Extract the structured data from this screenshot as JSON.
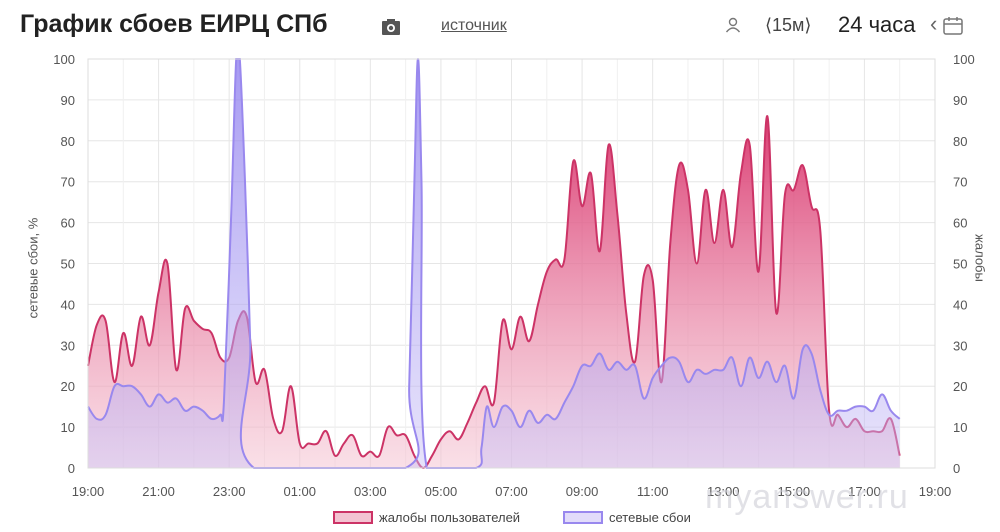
{
  "header": {
    "title": "График сбоев ЕИРЦ СПб",
    "source_link": "источник",
    "interval": "⟨15м⟩",
    "range": "24 часа",
    "range_prev": "‹"
  },
  "watermark": {
    "site": "myanswer.ru"
  },
  "colors": {
    "complaints": "#cc3366",
    "outages": "#9988ee",
    "grid": "#e6e6e6"
  },
  "chart_data": {
    "type": "area",
    "ylabel_left": "сетевые сбои, %",
    "ylabel_right": "жалобы",
    "ylim": [
      0,
      100
    ],
    "y_ticks": [
      0,
      10,
      20,
      30,
      40,
      50,
      60,
      70,
      80,
      90,
      100
    ],
    "x_ticks": [
      "19:00",
      "21:00",
      "23:00",
      "01:00",
      "03:00",
      "05:00",
      "07:00",
      "09:00",
      "11:00",
      "13:00",
      "15:00",
      "17:00",
      "19:00"
    ],
    "grid": true,
    "legend_position": "bottom-center",
    "series": [
      {
        "name": "жалобы пользователей",
        "color": "#cc3366",
        "points": [
          [
            0,
            25
          ],
          [
            0.25,
            35
          ],
          [
            0.5,
            36
          ],
          [
            0.75,
            21
          ],
          [
            1,
            33
          ],
          [
            1.25,
            25
          ],
          [
            1.5,
            37
          ],
          [
            1.75,
            30
          ],
          [
            2,
            43
          ],
          [
            2.25,
            50
          ],
          [
            2.5,
            24
          ],
          [
            2.75,
            39
          ],
          [
            3,
            36
          ],
          [
            3.25,
            34
          ],
          [
            3.5,
            33
          ],
          [
            3.75,
            27
          ],
          [
            4,
            27
          ],
          [
            4.25,
            36
          ],
          [
            4.5,
            37
          ],
          [
            4.75,
            21
          ],
          [
            5,
            24
          ],
          [
            5.25,
            12
          ],
          [
            5.5,
            9
          ],
          [
            5.75,
            20
          ],
          [
            6,
            6
          ],
          [
            6.25,
            6
          ],
          [
            6.5,
            6
          ],
          [
            6.75,
            9
          ],
          [
            7,
            3
          ],
          [
            7.25,
            6
          ],
          [
            7.5,
            8
          ],
          [
            7.75,
            3
          ],
          [
            8,
            4
          ],
          [
            8.25,
            3
          ],
          [
            8.5,
            10
          ],
          [
            8.75,
            8
          ],
          [
            9,
            8
          ],
          [
            9.25,
            3
          ],
          [
            9.5,
            0
          ],
          [
            9.75,
            3
          ],
          [
            10,
            7
          ],
          [
            10.25,
            9
          ],
          [
            10.5,
            7
          ],
          [
            10.75,
            11
          ],
          [
            11,
            16
          ],
          [
            11.25,
            20
          ],
          [
            11.5,
            16
          ],
          [
            11.75,
            36
          ],
          [
            12,
            29
          ],
          [
            12.25,
            37
          ],
          [
            12.5,
            31
          ],
          [
            12.75,
            40
          ],
          [
            13,
            48
          ],
          [
            13.25,
            51
          ],
          [
            13.5,
            51
          ],
          [
            13.75,
            75
          ],
          [
            14,
            64
          ],
          [
            14.25,
            72
          ],
          [
            14.5,
            53
          ],
          [
            14.75,
            79
          ],
          [
            15,
            62
          ],
          [
            15.25,
            38
          ],
          [
            15.5,
            26
          ],
          [
            15.75,
            47
          ],
          [
            16,
            46
          ],
          [
            16.25,
            21
          ],
          [
            16.5,
            55
          ],
          [
            16.75,
            74
          ],
          [
            17,
            68
          ],
          [
            17.25,
            50
          ],
          [
            17.5,
            68
          ],
          [
            17.75,
            55
          ],
          [
            18,
            68
          ],
          [
            18.25,
            54
          ],
          [
            18.5,
            72
          ],
          [
            18.75,
            79
          ],
          [
            19,
            48
          ],
          [
            19.25,
            86
          ],
          [
            19.5,
            38
          ],
          [
            19.75,
            67
          ],
          [
            20,
            68
          ],
          [
            20.25,
            74
          ],
          [
            20.5,
            64
          ],
          [
            20.75,
            58
          ],
          [
            21,
            14
          ],
          [
            21.25,
            13
          ],
          [
            21.5,
            10
          ],
          [
            21.75,
            12
          ],
          [
            22,
            9
          ],
          [
            22.25,
            9
          ],
          [
            22.5,
            9
          ],
          [
            22.75,
            12
          ],
          [
            23,
            3
          ]
        ]
      },
      {
        "name": "сетевые сбои",
        "color": "#9988ee",
        "points": [
          [
            0,
            15
          ],
          [
            0.25,
            12
          ],
          [
            0.5,
            13
          ],
          [
            0.75,
            20
          ],
          [
            1,
            20
          ],
          [
            1.25,
            20
          ],
          [
            1.5,
            18
          ],
          [
            1.75,
            15
          ],
          [
            2,
            18
          ],
          [
            2.25,
            16
          ],
          [
            2.5,
            17
          ],
          [
            2.75,
            14
          ],
          [
            3,
            15
          ],
          [
            3.25,
            14
          ],
          [
            3.5,
            12
          ],
          [
            3.75,
            13
          ],
          [
            3.85,
            16
          ],
          [
            4.05,
            60
          ],
          [
            4.2,
            100
          ],
          [
            4.3,
            100
          ],
          [
            4.45,
            70
          ],
          [
            4.6,
            30
          ],
          [
            4.7,
            0
          ],
          [
            9,
            0
          ],
          [
            9.1,
            20
          ],
          [
            9.25,
            70
          ],
          [
            9.35,
            100
          ],
          [
            9.45,
            70
          ],
          [
            9.6,
            0
          ],
          [
            11,
            0
          ],
          [
            11.15,
            5
          ],
          [
            11.3,
            15
          ],
          [
            11.5,
            10
          ],
          [
            11.75,
            15
          ],
          [
            12,
            14
          ],
          [
            12.25,
            10
          ],
          [
            12.5,
            14
          ],
          [
            12.75,
            11
          ],
          [
            13,
            13
          ],
          [
            13.25,
            12
          ],
          [
            13.5,
            16
          ],
          [
            13.75,
            20
          ],
          [
            14,
            25
          ],
          [
            14.25,
            25
          ],
          [
            14.5,
            28
          ],
          [
            14.75,
            24
          ],
          [
            15,
            26
          ],
          [
            15.25,
            24
          ],
          [
            15.5,
            25
          ],
          [
            15.75,
            17
          ],
          [
            16,
            22
          ],
          [
            16.25,
            25
          ],
          [
            16.5,
            27
          ],
          [
            16.75,
            26
          ],
          [
            17,
            21
          ],
          [
            17.25,
            24
          ],
          [
            17.5,
            23
          ],
          [
            17.75,
            24
          ],
          [
            18,
            24
          ],
          [
            18.25,
            27
          ],
          [
            18.5,
            20
          ],
          [
            18.75,
            27
          ],
          [
            19,
            22
          ],
          [
            19.25,
            26
          ],
          [
            19.5,
            21
          ],
          [
            19.75,
            25
          ],
          [
            20,
            17
          ],
          [
            20.25,
            29
          ],
          [
            20.5,
            28
          ],
          [
            20.75,
            19
          ],
          [
            21,
            13
          ],
          [
            21.25,
            14
          ],
          [
            21.5,
            14
          ],
          [
            21.75,
            15
          ],
          [
            22,
            15
          ],
          [
            22.25,
            14
          ],
          [
            22.5,
            18
          ],
          [
            22.75,
            14
          ],
          [
            23,
            12
          ]
        ]
      }
    ]
  }
}
